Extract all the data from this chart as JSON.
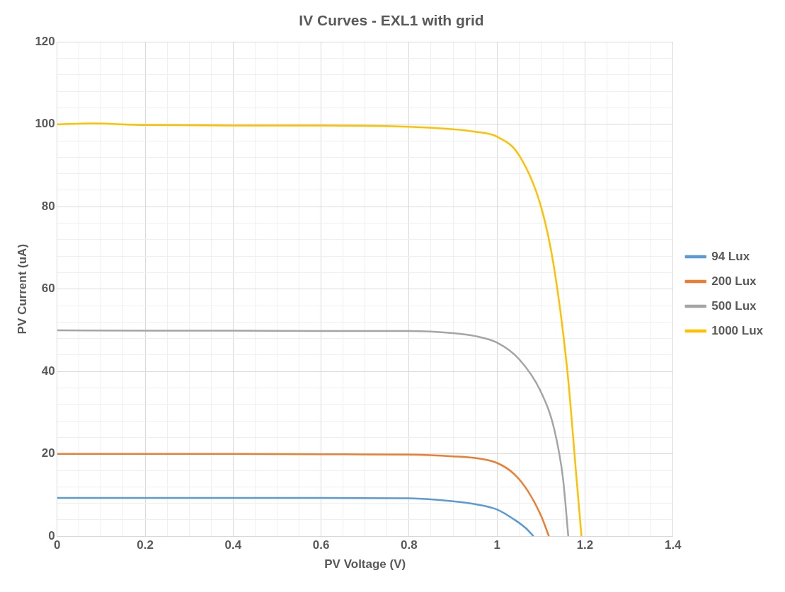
{
  "chart_data": {
    "type": "line",
    "title": "IV Curves - EXL1 with grid",
    "xlabel": "PV Voltage (V)",
    "ylabel": "PV Current (uA)",
    "xlim": [
      0,
      1.4
    ],
    "ylim": [
      0,
      120
    ],
    "xticks": [
      0,
      {
        "value": 0.05,
        "label": null
      },
      {
        "value": 0.1,
        "label": null
      },
      {
        "value": 0.15,
        "label": null
      },
      0.2,
      {
        "value": 0.25,
        "label": null
      },
      {
        "value": 0.3,
        "label": null
      },
      {
        "value": 0.35,
        "label": null
      },
      0.4,
      {
        "value": 0.45,
        "label": null
      },
      {
        "value": 0.5,
        "label": null
      },
      {
        "value": 0.55,
        "label": null
      },
      0.6,
      {
        "value": 0.65,
        "label": null
      },
      {
        "value": 0.7,
        "label": null
      },
      {
        "value": 0.75,
        "label": null
      },
      0.8,
      {
        "value": 0.85,
        "label": null
      },
      {
        "value": 0.9,
        "label": null
      },
      {
        "value": 0.95,
        "label": null
      },
      1,
      {
        "value": 1.05,
        "label": null
      },
      {
        "value": 1.1,
        "label": null
      },
      {
        "value": 1.15,
        "label": null
      },
      1.2,
      {
        "value": 1.25,
        "label": null
      },
      {
        "value": 1.3,
        "label": null
      },
      {
        "value": 1.35,
        "label": null
      },
      1.4
    ],
    "yticks": [
      0,
      {
        "value": 4,
        "label": null
      },
      {
        "value": 8,
        "label": null
      },
      {
        "value": 12,
        "label": null
      },
      {
        "value": 16,
        "label": null
      },
      20,
      {
        "value": 24,
        "label": null
      },
      {
        "value": 28,
        "label": null
      },
      {
        "value": 32,
        "label": null
      },
      {
        "value": 36,
        "label": null
      },
      40,
      {
        "value": 44,
        "label": null
      },
      {
        "value": 48,
        "label": null
      },
      {
        "value": 52,
        "label": null
      },
      {
        "value": 56,
        "label": null
      },
      60,
      {
        "value": 64,
        "label": null
      },
      {
        "value": 68,
        "label": null
      },
      {
        "value": 72,
        "label": null
      },
      {
        "value": 76,
        "label": null
      },
      80,
      {
        "value": 84,
        "label": null
      },
      {
        "value": 88,
        "label": null
      },
      {
        "value": 92,
        "label": null
      },
      {
        "value": 96,
        "label": null
      },
      100,
      {
        "value": 104,
        "label": null
      },
      {
        "value": 108,
        "label": null
      },
      {
        "value": 112,
        "label": null
      },
      {
        "value": 116,
        "label": null
      },
      120
    ],
    "grid": true,
    "legend": "right",
    "marker": "none",
    "line_style": "solid",
    "series": [
      {
        "name": "94 Lux",
        "color": "#5b9bd5",
        "x": [
          0,
          0.2,
          0.4,
          0.6,
          0.8,
          0.9,
          0.95,
          1.0,
          1.04,
          1.065,
          1.083
        ],
        "values": [
          9.3,
          9.3,
          9.3,
          9.3,
          9.2,
          8.5,
          7.8,
          6.5,
          4,
          2,
          0
        ]
      },
      {
        "name": "200 Lux",
        "color": "#ed7d31",
        "x": [
          0,
          0.2,
          0.4,
          0.6,
          0.8,
          0.9,
          0.95,
          1.0,
          1.04,
          1.07,
          1.1,
          1.118
        ],
        "values": [
          20,
          20,
          20,
          19.9,
          19.8,
          19.4,
          19,
          17.8,
          15,
          11,
          5,
          0
        ]
      },
      {
        "name": "500 Lux",
        "color": "#a5a5a5",
        "x": [
          0,
          0.2,
          0.4,
          0.6,
          0.8,
          0.9,
          0.95,
          1.0,
          1.05,
          1.1,
          1.13,
          1.15,
          1.162
        ],
        "values": [
          50,
          49.9,
          49.9,
          49.8,
          49.8,
          49.3,
          48.6,
          47,
          43,
          35,
          26,
          14,
          0
        ]
      },
      {
        "name": "1000 Lux",
        "color": "#ffc000",
        "x": [
          0,
          0.08,
          0.2,
          0.4,
          0.6,
          0.8,
          0.9,
          0.95,
          1.0,
          1.05,
          1.1,
          1.13,
          1.16,
          1.18,
          1.192
        ],
        "values": [
          100,
          100.2,
          99.8,
          99.7,
          99.7,
          99.4,
          98.8,
          98.2,
          97,
          92.5,
          80,
          65,
          40,
          15,
          0
        ]
      }
    ]
  }
}
